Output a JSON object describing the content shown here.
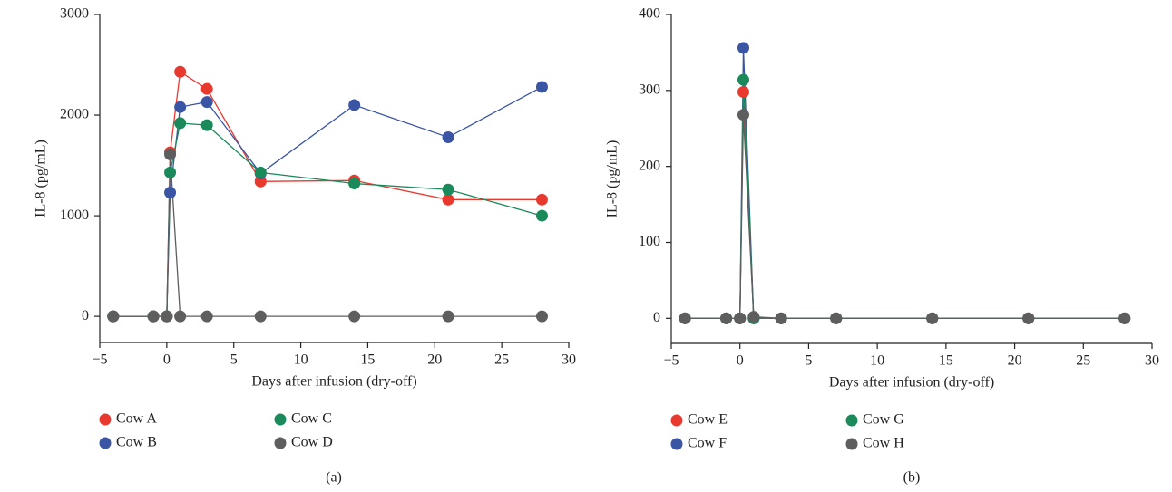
{
  "chart_data": [
    {
      "type": "line",
      "caption": "(a)",
      "xlabel": "Days after infusion (dry-off)",
      "ylabel": "IL-8 (pg/mL)",
      "x": [
        -4,
        -1,
        0,
        0.25,
        1,
        3,
        7,
        14,
        21,
        28
      ],
      "series": [
        {
          "name": "Cow A",
          "color": "#e8392f",
          "values": [
            0,
            0,
            0,
            1630,
            2430,
            2260,
            1340,
            1350,
            1160,
            1160
          ]
        },
        {
          "name": "Cow B",
          "color": "#3a55a4",
          "values": [
            0,
            0,
            0,
            1230,
            2080,
            2130,
            1420,
            2100,
            1780,
            2280
          ]
        },
        {
          "name": "Cow C",
          "color": "#1a8a5a",
          "values": [
            0,
            0,
            0,
            1430,
            1920,
            1900,
            1430,
            1320,
            1260,
            1000
          ]
        },
        {
          "name": "Cow D",
          "color": "#5e5e5e",
          "values": [
            0,
            0,
            0,
            1610,
            0,
            0,
            0,
            0,
            0,
            0
          ]
        }
      ],
      "xlim": [
        -5,
        30
      ],
      "xticks": [
        {
          "value": -5,
          "label": "−5"
        },
        0,
        5,
        10,
        15,
        20,
        25,
        30
      ],
      "ylim": [
        -260,
        3000
      ],
      "yticks": [
        0,
        1000,
        2000,
        3000
      ]
    },
    {
      "type": "line",
      "caption": "(b)",
      "xlabel": "Days after infusion (dry-off)",
      "ylabel": "IL-8 (pg/mL)",
      "x": [
        -4,
        -1,
        0,
        0.25,
        1,
        3,
        7,
        14,
        21,
        28
      ],
      "series": [
        {
          "name": "Cow E",
          "color": "#e8392f",
          "values": [
            0,
            0,
            0,
            298,
            0,
            0,
            0,
            0,
            0,
            0
          ]
        },
        {
          "name": "Cow F",
          "color": "#3a55a4",
          "values": [
            0,
            0,
            0,
            356,
            0,
            0,
            0,
            0,
            0,
            0
          ]
        },
        {
          "name": "Cow G",
          "color": "#1a8a5a",
          "values": [
            0,
            0,
            0,
            314,
            0,
            0,
            0,
            0,
            0,
            0
          ]
        },
        {
          "name": "Cow H",
          "color": "#5e5e5e",
          "values": [
            0,
            0,
            0,
            268,
            2,
            0,
            0,
            0,
            0,
            0
          ]
        }
      ],
      "xlim": [
        -5,
        30
      ],
      "xticks": [
        {
          "value": -5,
          "label": "−5"
        },
        0,
        5,
        10,
        15,
        20,
        25,
        30
      ],
      "ylim": [
        -33,
        400
      ],
      "yticks": [
        0,
        100,
        200,
        300,
        400
      ]
    }
  ]
}
